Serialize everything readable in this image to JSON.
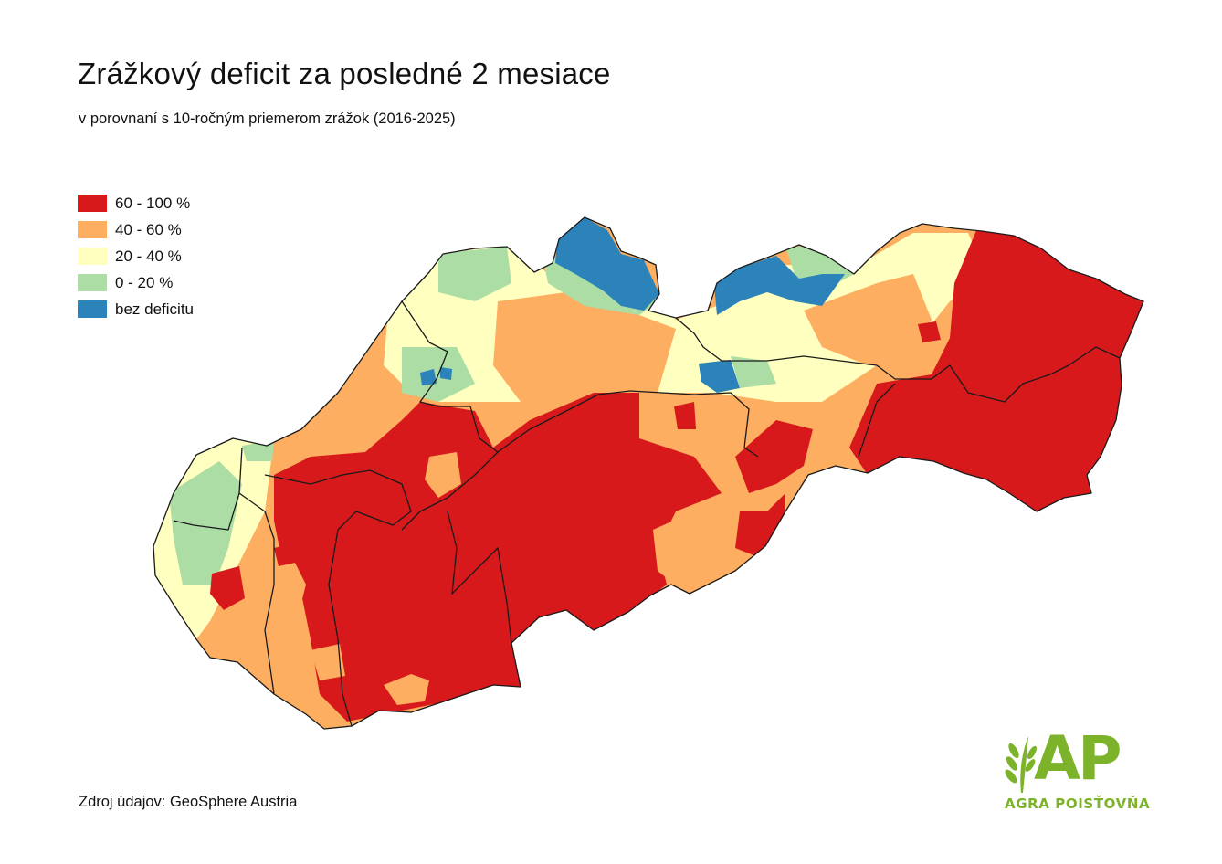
{
  "title": "Zrážkový deficit za posledné 2 mesiace",
  "subtitle": "v porovnaní s 10-ročným priemerom zrážok (2016-2025)",
  "legend": [
    {
      "label": "60 - 100 %",
      "color": "#d7191c"
    },
    {
      "label": "40 - 60 %",
      "color": "#fdae61"
    },
    {
      "label": "20 - 40 %",
      "color": "#ffffbf"
    },
    {
      "label": "0 - 20 %",
      "color": "#abdda4"
    },
    {
      "label": "bez deficitu",
      "color": "#2b83ba"
    }
  ],
  "source": "Zdroj údajov: GeoSphere Austria",
  "logo": {
    "letters": "AP",
    "name": "AGRA POISŤOVŇA",
    "color": "#7cb32a"
  }
}
